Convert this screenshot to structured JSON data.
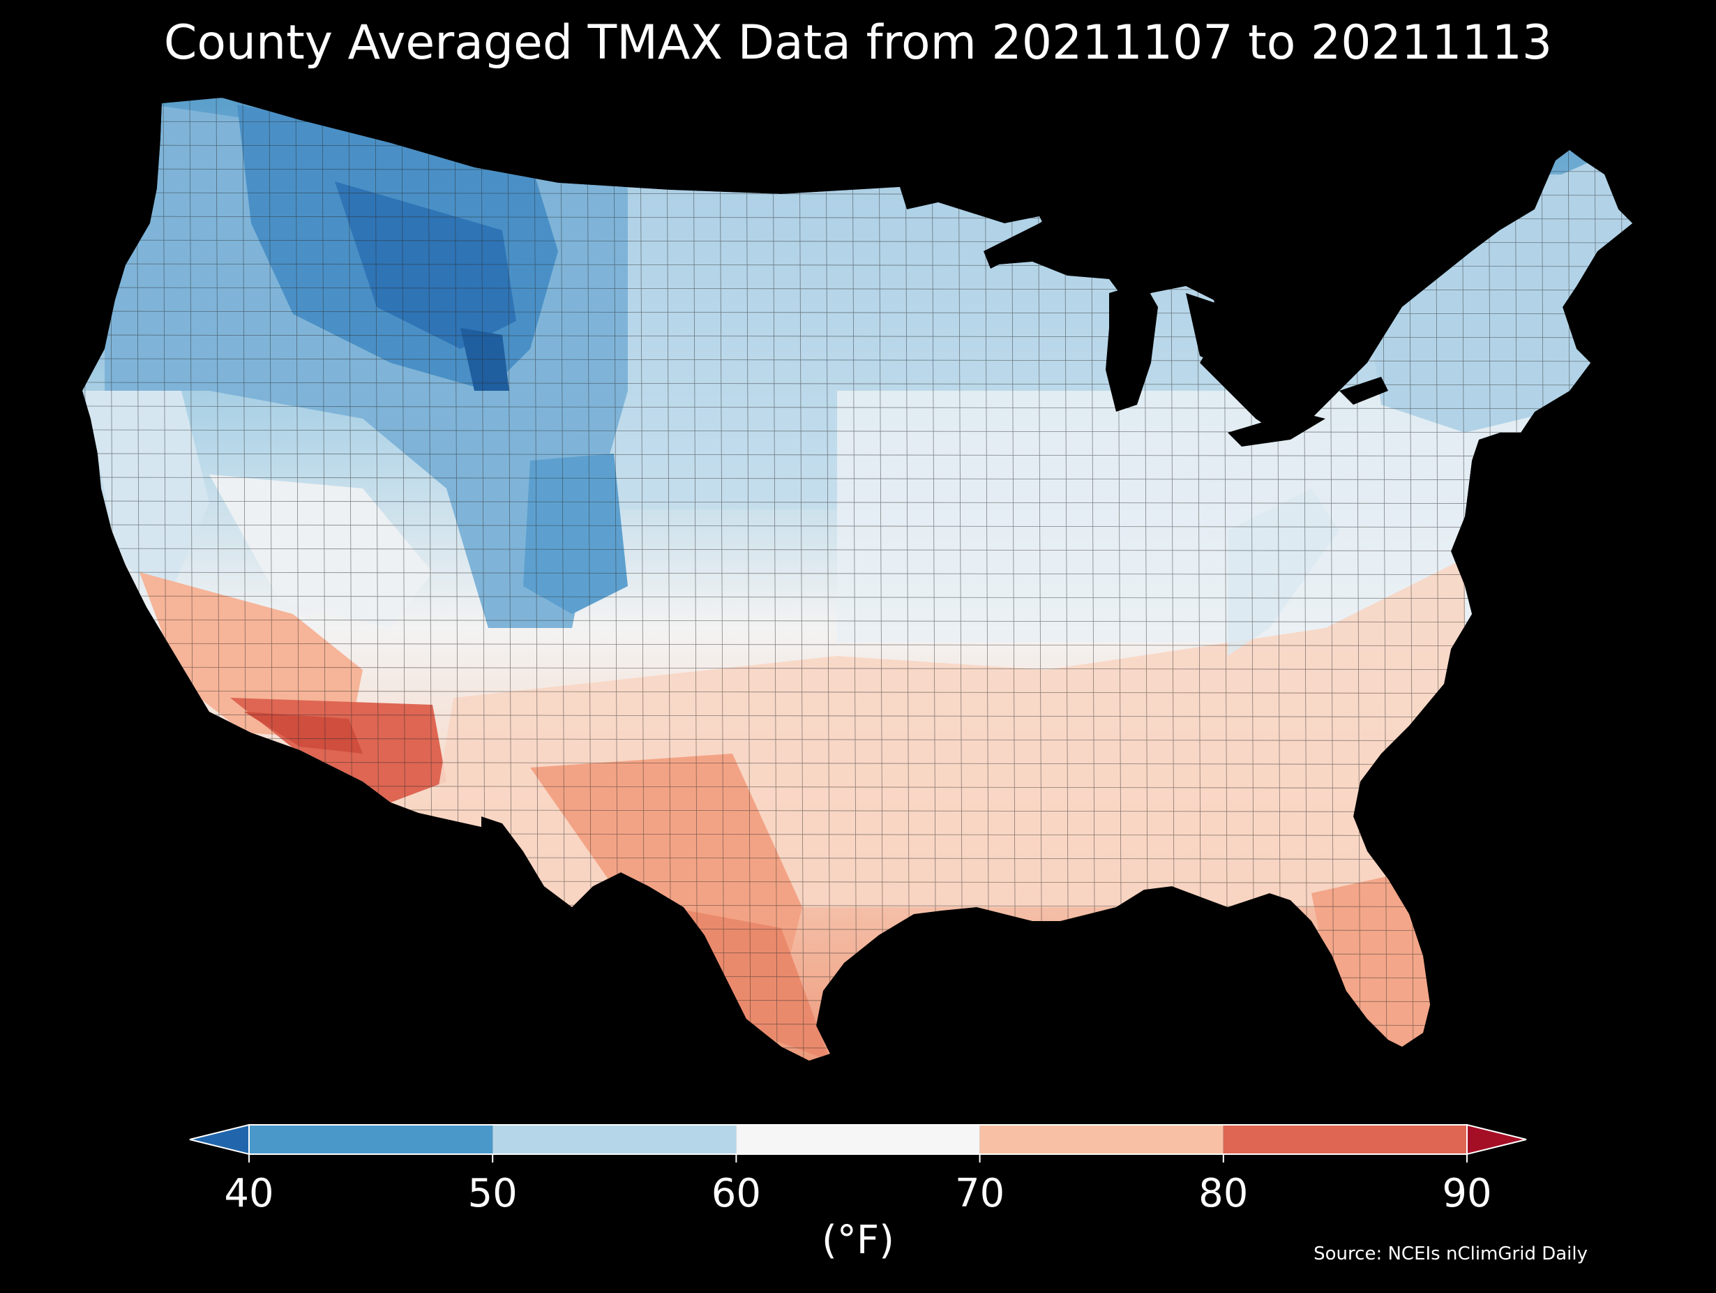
{
  "title": "County Averaged TMAX Data from 20211107 to 20211113",
  "source": "Source: NCEIs nClimGrid Daily",
  "colorbar": {
    "unit_label": "(°F)",
    "ticks": [
      "40",
      "50",
      "60",
      "70",
      "80",
      "90"
    ],
    "extend": "both",
    "under_color": "#2166ac",
    "over_color": "#a50f26",
    "bins": [
      {
        "range": [
          40,
          50
        ],
        "color": "#4a97c9"
      },
      {
        "range": [
          50,
          60
        ],
        "color": "#b4d6e8"
      },
      {
        "range": [
          60,
          70
        ],
        "color": "#f6f6f6"
      },
      {
        "range": [
          70,
          80
        ],
        "color": "#f8c0a4"
      },
      {
        "range": [
          80,
          90
        ],
        "color": "#de6653"
      }
    ]
  },
  "map": {
    "region": "Contiguous United States, county level",
    "variable": "TMAX",
    "colors": {
      "background": "#000000",
      "coldest": "#2166ac",
      "cold": "#4a97c9",
      "cool": "#b4d6e8",
      "neutral": "#f6f6f6",
      "warm": "#f8c0a4",
      "hot": "#de6653",
      "county_border": "#222222"
    }
  }
}
